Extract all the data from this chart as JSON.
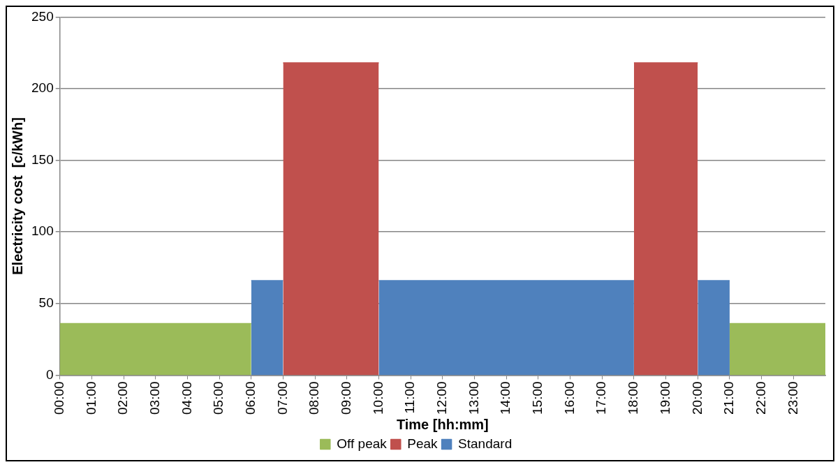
{
  "chart_data": {
    "type": "area",
    "xlabel": "Time [hh:mm]",
    "ylabel": "Electricity cost  [c/kWh]",
    "xlim": [
      0,
      24
    ],
    "xticks": [
      {
        "value": 0,
        "label": "00:00"
      },
      {
        "value": 1,
        "label": "01:00"
      },
      {
        "value": 2,
        "label": "02:00"
      },
      {
        "value": 3,
        "label": "03:00"
      },
      {
        "value": 4,
        "label": "04:00"
      },
      {
        "value": 5,
        "label": "05:00"
      },
      {
        "value": 6,
        "label": "06:00"
      },
      {
        "value": 7,
        "label": "07:00"
      },
      {
        "value": 8,
        "label": "08:00"
      },
      {
        "value": 9,
        "label": "09:00"
      },
      {
        "value": 10,
        "label": "10:00"
      },
      {
        "value": 11,
        "label": "11:00"
      },
      {
        "value": 12,
        "label": "12:00"
      },
      {
        "value": 13,
        "label": "13:00"
      },
      {
        "value": 14,
        "label": "14:00"
      },
      {
        "value": 15,
        "label": "15:00"
      },
      {
        "value": 16,
        "label": "16:00"
      },
      {
        "value": 17,
        "label": "17:00"
      },
      {
        "value": 18,
        "label": "18:00"
      },
      {
        "value": 19,
        "label": "19:00"
      },
      {
        "value": 20,
        "label": "20:00"
      },
      {
        "value": 21,
        "label": "21:00"
      },
      {
        "value": 22,
        "label": "22:00"
      },
      {
        "value": 23,
        "label": "23:00"
      }
    ],
    "ylim": [
      0,
      250
    ],
    "yticks": [
      0,
      50,
      100,
      150,
      200,
      250
    ],
    "grid": "y",
    "legend": "bottom",
    "series": [
      {
        "name": "Off peak",
        "color": "#9bbb59",
        "x": [
          0,
          6,
          12,
          21,
          24
        ],
        "values": [
          36,
          36,
          null,
          36,
          36
        ]
      },
      {
        "name": "Peak",
        "color": "#c0504d",
        "x": [
          7,
          10,
          14,
          18,
          20
        ],
        "values": [
          218,
          218,
          null,
          218,
          218
        ]
      },
      {
        "name": "Standard",
        "color": "#4f81bd",
        "x": [
          6,
          7,
          8.5,
          10,
          18,
          19,
          20,
          21
        ],
        "values": [
          66,
          66,
          null,
          66,
          66,
          null,
          66,
          66
        ]
      }
    ]
  }
}
